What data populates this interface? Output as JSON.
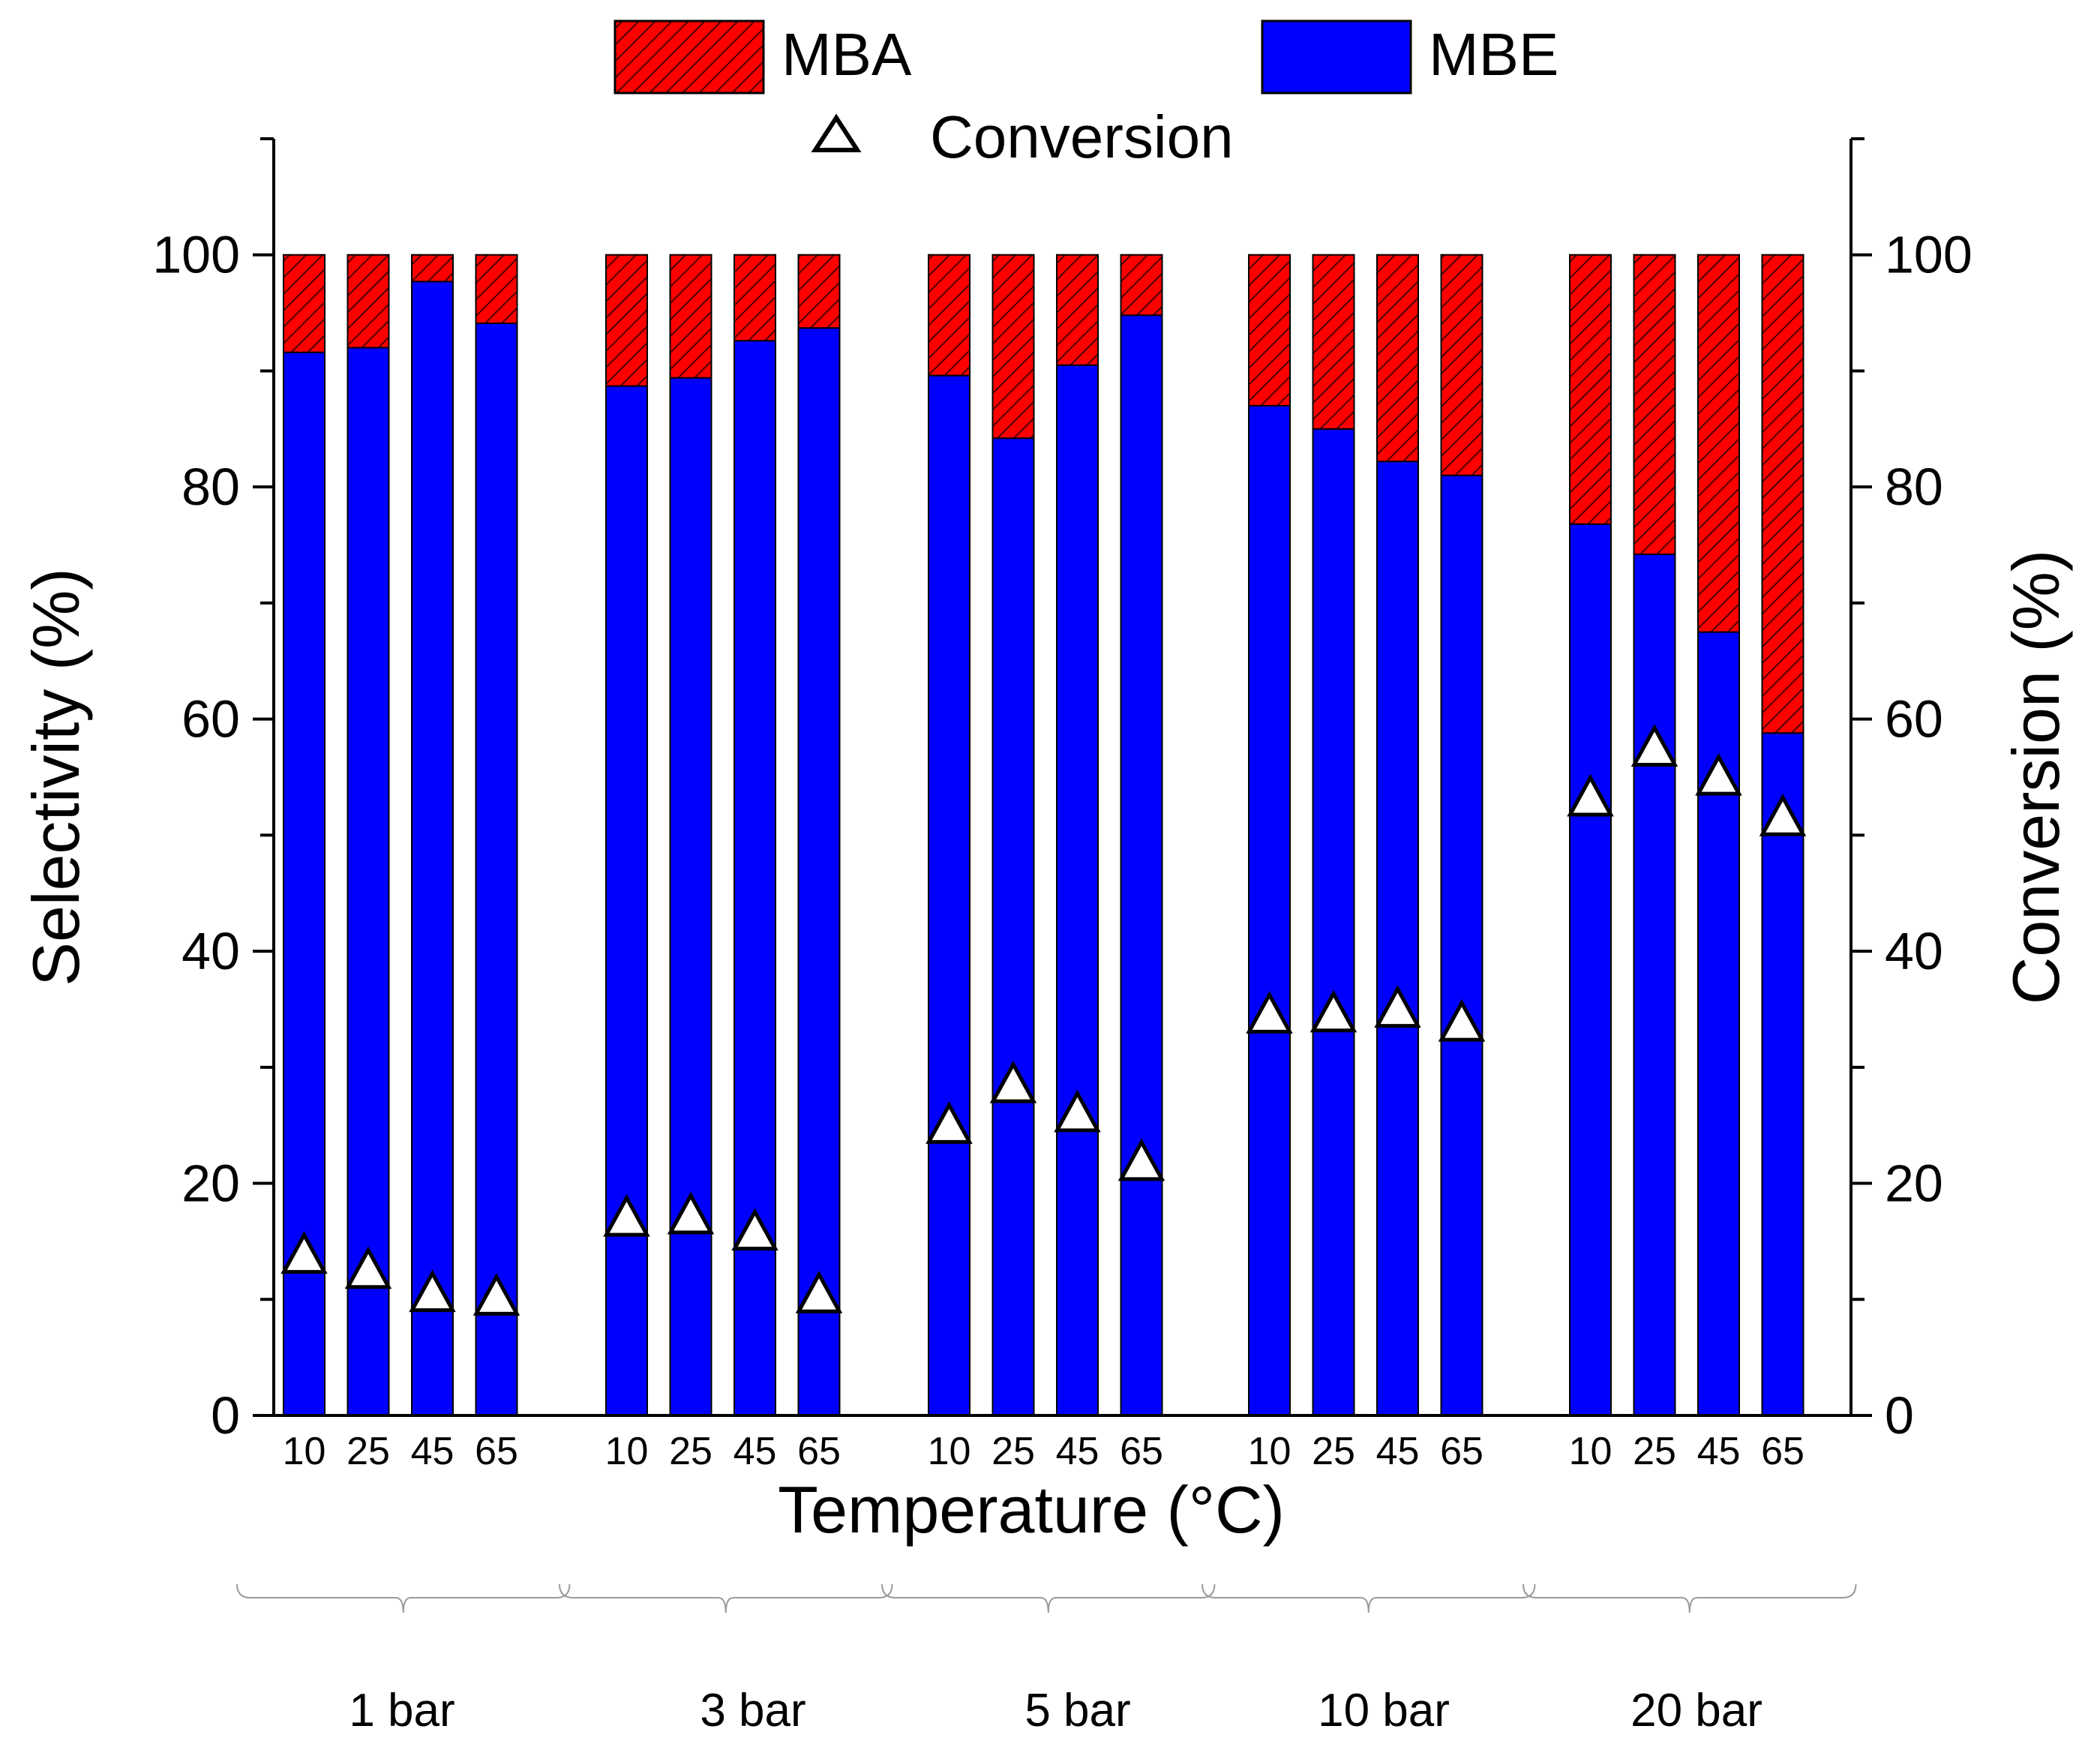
{
  "chart_data": {
    "type": "bar",
    "stacked": true,
    "xlabel": "Temperature (°C)",
    "ylabel": "Selectivity (%)",
    "y2label": "Conversion (%)",
    "ylim": [
      0,
      110
    ],
    "y2lim": [
      0,
      110
    ],
    "yticks": [
      0,
      20,
      40,
      60,
      80,
      100
    ],
    "y2ticks": [
      0,
      20,
      40,
      60,
      80,
      100
    ],
    "groups": [
      "1 bar",
      "3 bar",
      "5 bar",
      "10 bar",
      "20 bar"
    ],
    "categories": [
      "10",
      "25",
      "45",
      "65"
    ],
    "legend": {
      "mba": "MBA",
      "mbe": "MBE",
      "conversion": "Conversion"
    },
    "colors": {
      "mbe": "#0000ff",
      "mba": "#ff0000",
      "conversion_marker": "#ffffff"
    },
    "series": [
      {
        "name": "MBE",
        "stack": "bottom",
        "values": [
          [
            91.6,
            92.0,
            97.7,
            94.1
          ],
          [
            88.7,
            89.4,
            92.6,
            93.7
          ],
          [
            89.6,
            84.2,
            90.5,
            94.8
          ],
          [
            87.0,
            85.0,
            82.2,
            81.0
          ],
          [
            76.8,
            74.2,
            67.5,
            58.8
          ]
        ]
      },
      {
        "name": "MBA",
        "stack": "top",
        "values": [
          [
            8.4,
            8.0,
            2.3,
            5.9
          ],
          [
            11.3,
            10.6,
            7.4,
            6.3
          ],
          [
            10.4,
            15.8,
            9.5,
            5.2
          ],
          [
            13.0,
            15.0,
            17.8,
            19.0
          ],
          [
            23.2,
            25.8,
            32.5,
            41.2
          ]
        ]
      },
      {
        "name": "Conversion",
        "axis": "right",
        "marker": "triangle",
        "values": [
          [
            13.8,
            12.5,
            10.5,
            10.2
          ],
          [
            17.0,
            17.2,
            15.8,
            10.4
          ],
          [
            25.0,
            28.5,
            26.0,
            21.8
          ],
          [
            34.5,
            34.6,
            35.0,
            33.8
          ],
          [
            53.2,
            57.5,
            55.0,
            51.5
          ]
        ]
      }
    ]
  }
}
